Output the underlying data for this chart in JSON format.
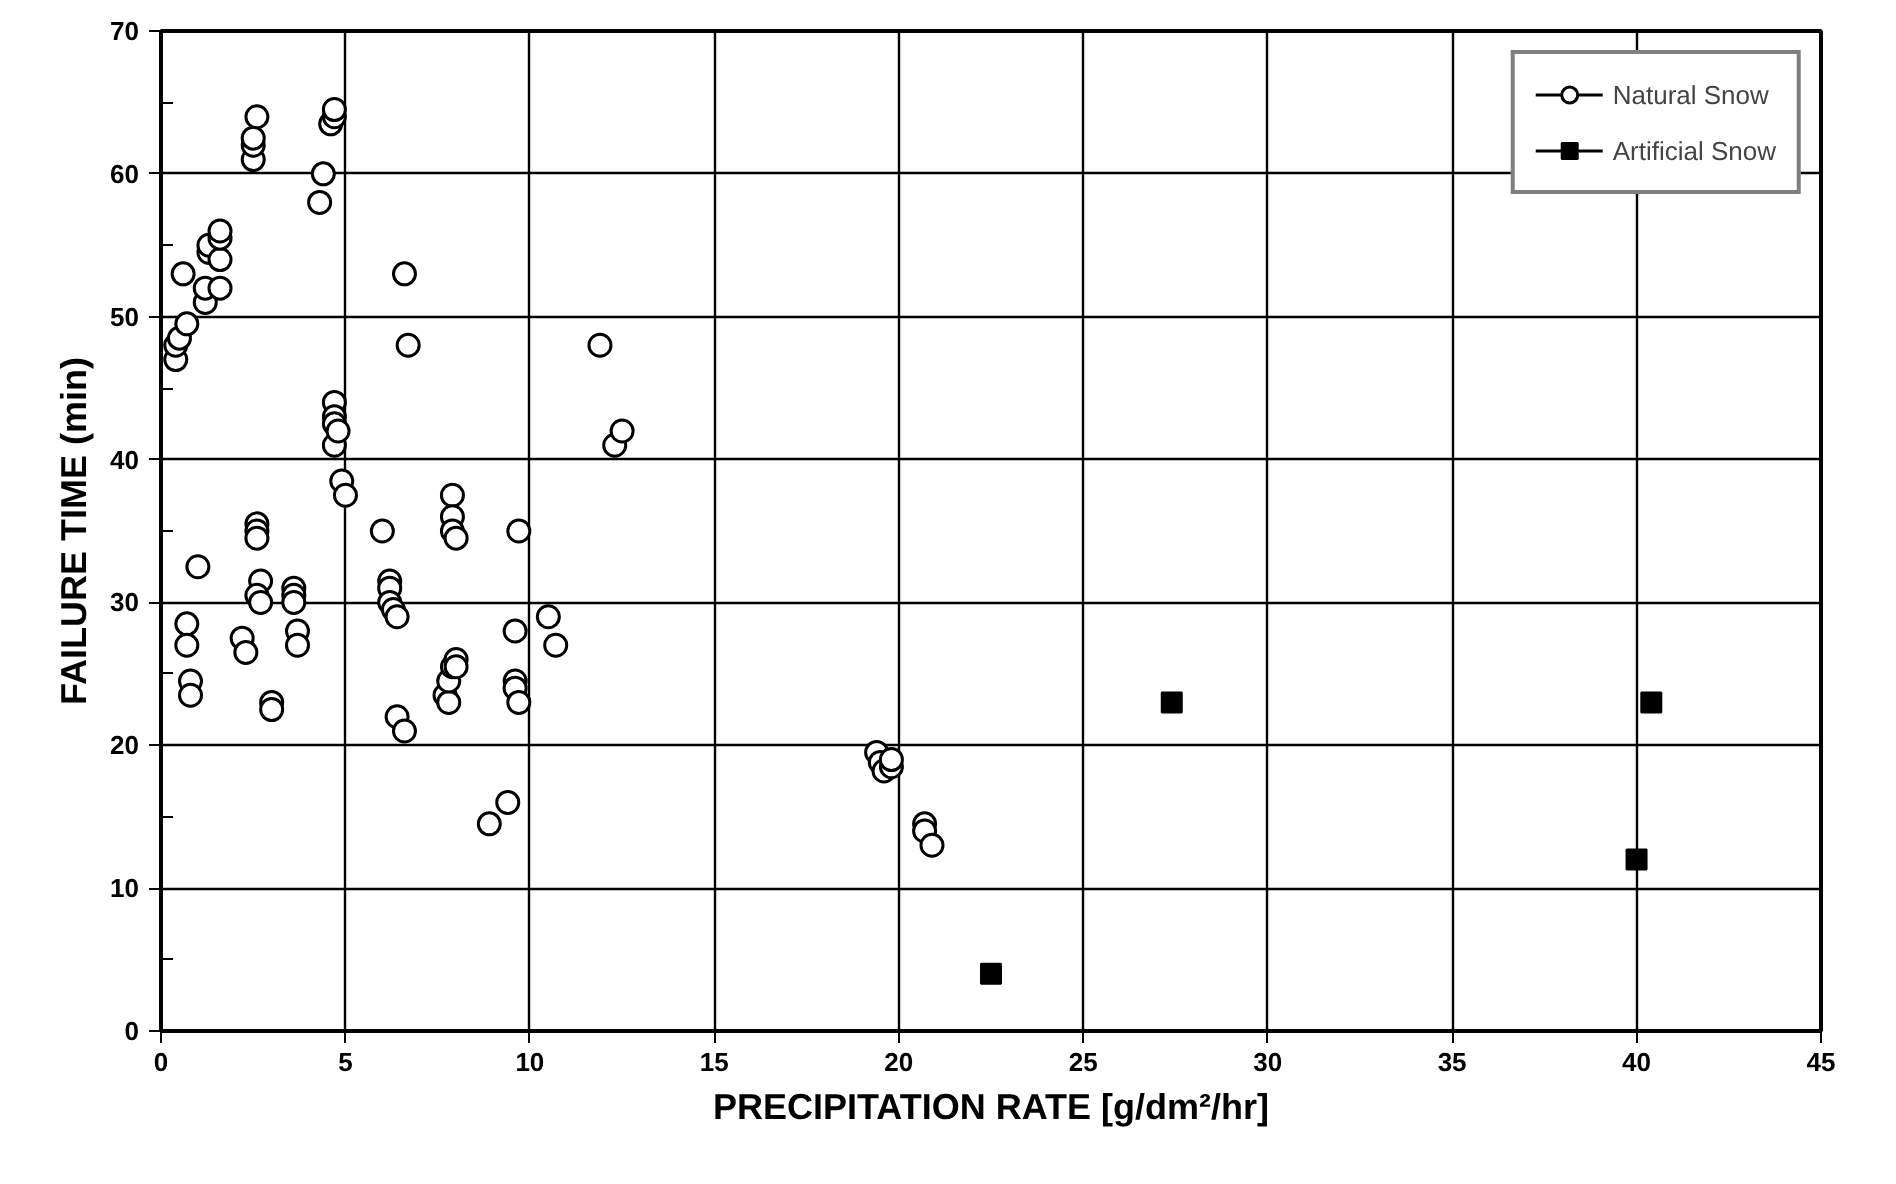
{
  "chart_data": {
    "type": "scatter",
    "xlabel": "PRECIPITATION RATE [g/dm²/hr]",
    "ylabel": "FAILURE TIME (min)",
    "xlim": [
      0,
      45
    ],
    "xticks": [
      0,
      5,
      10,
      15,
      20,
      25,
      30,
      35,
      40,
      45
    ],
    "ylim": [
      0,
      70
    ],
    "yticks": [
      0,
      {
        "value": 5,
        "label": null
      },
      10,
      {
        "value": 15,
        "label": null
      },
      20,
      {
        "value": 25,
        "label": null
      },
      30,
      {
        "value": 35,
        "label": null
      },
      40,
      {
        "value": 45,
        "label": null
      },
      50,
      {
        "value": 55,
        "label": null
      },
      60,
      {
        "value": 65,
        "label": null
      },
      70
    ],
    "grid": true,
    "legend": "top right",
    "series": [
      {
        "name": "Natural Snow",
        "color": "#000000",
        "marker": "circle",
        "x": [
          0.4,
          0.4,
          0.5,
          0.6,
          0.7,
          0.7,
          0.7,
          0.8,
          0.8,
          1,
          1.2,
          1.2,
          1.3,
          1.3,
          1.6,
          1.6,
          1.6,
          1.6,
          2.2,
          2.3,
          2.5,
          2.5,
          2.5,
          2.6,
          2.6,
          2.6,
          2.6,
          2.7,
          2.6,
          2.7,
          3,
          3,
          3.6,
          3.6,
          3.6,
          3.7,
          3.7,
          4.3,
          4.4,
          4.6,
          4.7,
          4.7,
          4.7,
          4.7,
          4.7,
          4.7,
          4.8,
          4.9,
          5,
          6,
          6.2,
          6.2,
          6.2,
          6.3,
          6.4,
          6.4,
          6.6,
          6.6,
          6.7,
          7.7,
          7.8,
          7.8,
          7.9,
          7.9,
          7.9,
          7.9,
          8,
          8,
          8,
          8.9,
          9.4,
          9.6,
          9.6,
          9.6,
          9.7,
          9.7,
          10.5,
          10.7,
          11.9,
          12.3,
          12.5,
          19.4,
          19.5,
          19.6,
          19.8,
          19.8,
          20.7,
          20.7,
          20.9
        ],
        "values": [
          47,
          48,
          48.5,
          53,
          49.5,
          28.5,
          27,
          24.5,
          23.5,
          32.5,
          51,
          52,
          54.5,
          55,
          52,
          54,
          55.5,
          56,
          27.5,
          26.5,
          61,
          62,
          62.5,
          64,
          35.5,
          35,
          34.5,
          31.5,
          30.5,
          30,
          23,
          22.5,
          31,
          30.5,
          30,
          28,
          27,
          58,
          60,
          63.5,
          64,
          64.5,
          44,
          43,
          42.5,
          41,
          42,
          38.5,
          37.5,
          35,
          31.5,
          31,
          30,
          29.5,
          29,
          22,
          21,
          53,
          48,
          23.5,
          23,
          24.5,
          25.5,
          37.5,
          36,
          35,
          34.5,
          26,
          25.5,
          14.5,
          16,
          24.5,
          24,
          28,
          23,
          35,
          29,
          27,
          48,
          41,
          42,
          19.5,
          18.8,
          18.2,
          18.5,
          19,
          14.5,
          14,
          13
        ]
      },
      {
        "name": "Artificial Snow",
        "color": "#000000",
        "marker": "square",
        "x": [
          22.5,
          27.4,
          40,
          40.4
        ],
        "values": [
          4,
          23,
          12,
          23
        ]
      }
    ]
  }
}
